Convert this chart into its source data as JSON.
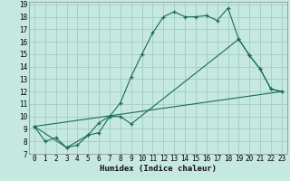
{
  "xlabel": "Humidex (Indice chaleur)",
  "bg_color": "#c5e8e0",
  "grid_color": "#a8cfc8",
  "line_color": "#1a6b5a",
  "xlim": [
    -0.5,
    23.5
  ],
  "ylim": [
    7,
    19.2
  ],
  "xticks": [
    0,
    1,
    2,
    3,
    4,
    5,
    6,
    7,
    8,
    9,
    10,
    11,
    12,
    13,
    14,
    15,
    16,
    17,
    18,
    19,
    20,
    21,
    22,
    23
  ],
  "yticks": [
    7,
    8,
    9,
    10,
    11,
    12,
    13,
    14,
    15,
    16,
    17,
    18,
    19
  ],
  "line1_x": [
    0,
    1,
    2,
    3,
    4,
    5,
    6,
    7,
    8,
    9,
    10,
    11,
    12,
    13,
    14,
    15,
    16,
    17,
    18,
    19,
    20,
    21,
    22,
    23
  ],
  "line1_y": [
    9.2,
    8.0,
    8.3,
    7.5,
    7.7,
    8.5,
    9.5,
    10.0,
    11.1,
    13.2,
    15.0,
    16.7,
    18.0,
    18.4,
    18.0,
    18.0,
    18.1,
    17.7,
    18.7,
    16.2,
    14.9,
    13.8,
    12.2,
    12.0
  ],
  "line2_x": [
    0,
    3,
    5,
    6,
    7,
    8,
    9,
    19,
    20,
    21,
    22,
    23
  ],
  "line2_y": [
    9.2,
    7.5,
    8.5,
    8.7,
    10.0,
    10.0,
    9.4,
    16.2,
    14.9,
    13.8,
    12.2,
    12.0
  ],
  "line3_x": [
    0,
    23
  ],
  "line3_y": [
    9.2,
    12.0
  ],
  "xlabel_fontsize": 6.5,
  "tick_fontsize": 5.5
}
